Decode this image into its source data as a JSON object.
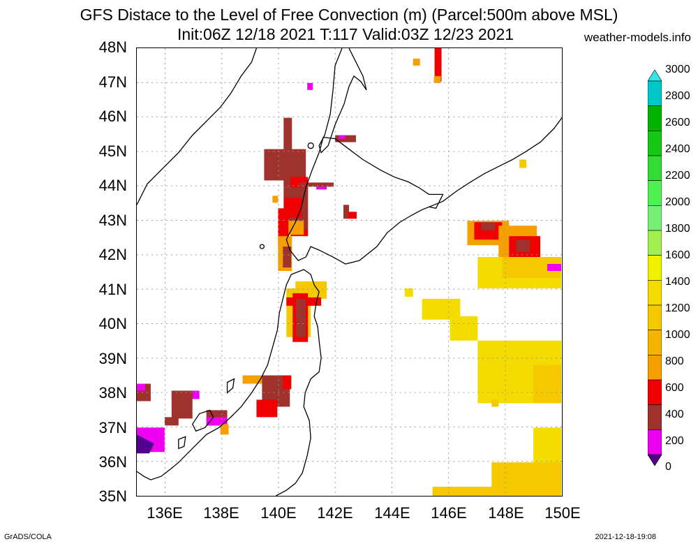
{
  "title_line1": "GFS Distace to the Level of Free Convection (m) (Parcel:500m above MSL)",
  "title_line2": "Init:06Z 12/18 2021 T:117 Valid:03Z 12/23 2021",
  "site": "weather-models.info",
  "footer_left": "GrADS/COLA",
  "footer_right": "2021-12-18-19:08",
  "lat_labels": [
    "48N",
    "47N",
    "46N",
    "45N",
    "44N",
    "43N",
    "42N",
    "41N",
    "40N",
    "39N",
    "38N",
    "37N",
    "36N",
    "35N"
  ],
  "lon_labels": [
    "136E",
    "138E",
    "140E",
    "142E",
    "144E",
    "146E",
    "148E",
    "150E"
  ],
  "colorbar": {
    "levels": [
      "3000",
      "2800",
      "2600",
      "2400",
      "2200",
      "2000",
      "1800",
      "1600",
      "1400",
      "1200",
      "1000",
      "800",
      "600",
      "400",
      "200",
      "0"
    ],
    "colors": [
      "#30e8e8",
      "#00c8c8",
      "#00b400",
      "#14c814",
      "#32dc32",
      "#50f050",
      "#78f078",
      "#a0f050",
      "#f0f000",
      "#f5dc00",
      "#f5c800",
      "#f5b400",
      "#f5a000",
      "#f00000",
      "#a0322d",
      "#f000f0",
      "#50008c"
    ]
  },
  "extent": {
    "lon": [
      135,
      150
    ],
    "lat": [
      35,
      48
    ]
  }
}
